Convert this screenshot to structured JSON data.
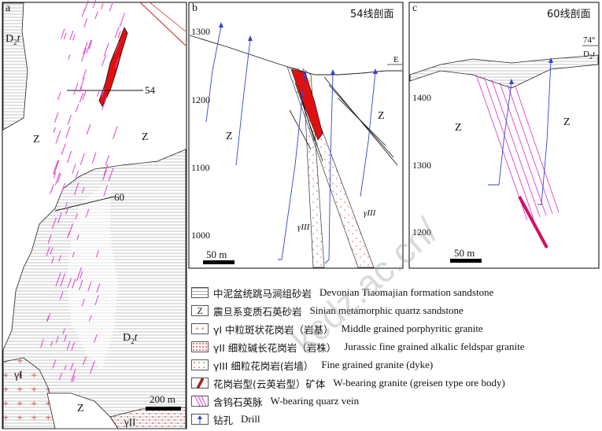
{
  "panels": {
    "a": {
      "letter": "a",
      "labels": {
        "d2t_top": "D",
        "d2t_top_sub": "2",
        "d2t_top_t": "t",
        "z_left": "Z",
        "z_right": "Z",
        "section54": "54",
        "section60": "60",
        "d2t_mid": "D",
        "d2t_mid_sub": "2",
        "d2t_mid_t": "t",
        "gamma1": "γI",
        "z_bottom": "Z",
        "gamma2": "γII",
        "scale": "200 m"
      }
    },
    "b": {
      "letter": "b",
      "title": "54线剖面",
      "yticks": [
        "1300",
        "1200",
        "1100",
        "1000"
      ],
      "z_left": "Z",
      "z_right": "Z",
      "e_label": "E",
      "gamma3_left": "γIII",
      "gamma3_right": "γIII",
      "scale": "50 m"
    },
    "c": {
      "letter": "c",
      "title": "60线剖面",
      "yticks": [
        "1400",
        "1300",
        "1200"
      ],
      "angle": "74°",
      "d2t": "D",
      "d2t_sub": "2",
      "d2t_t": "t",
      "z_left": "Z",
      "z_right": "Z",
      "scale": "50 m"
    }
  },
  "legend": [
    {
      "cn": "中泥盆统跳马涧组砂岩",
      "en": "Devonian Tiaomajian formation sandstone"
    },
    {
      "cn": "震旦系变质石英砂岩",
      "en": "Sinian metamorphic quartz sandstone",
      "symbol": "Z"
    },
    {
      "cn": "γI 中粒斑状花岗岩（岩基）",
      "en": "Middle grained porphyritic granite"
    },
    {
      "cn": "γII 细粒碱长花岗岩（岩株）",
      "en": "Jurassic fine grained alkalic feldspar granite"
    },
    {
      "cn": "γIII 细粒花岗岩(岩墙）",
      "en": "Fine grained granite (dyke)"
    },
    {
      "cn": "花岗岩型(云英岩型）矿体",
      "en": "W-bearing granite (greisen type ore body)"
    },
    {
      "cn": "含钨石英脉",
      "en": "W-bearing quarz vein"
    },
    {
      "cn": "钻孔",
      "en": "Drill"
    }
  ],
  "watermark": "kcdz.ac.cn/",
  "colors": {
    "vein": "#e040d0",
    "ore": "#e01010",
    "drill": "#3344cc",
    "granite": "#e07070"
  }
}
